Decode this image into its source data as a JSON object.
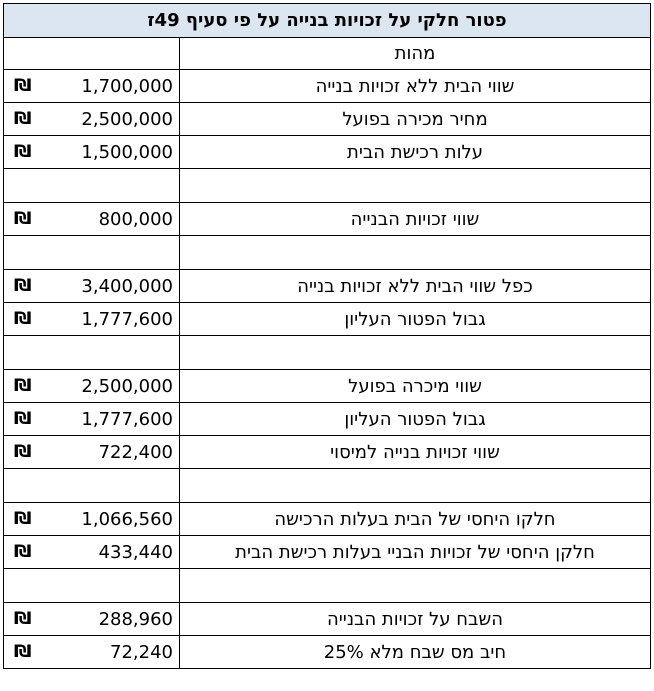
{
  "title": "פטור חלקי על זכויות בנייה על פי סעיף 49ז",
  "header": "מהות",
  "currency_symbol": "₪",
  "rows": [
    {
      "label": "שווי הבית ללא זכויות בנייה",
      "value": "1,700,000"
    },
    {
      "label": "מחיר מכירה בפועל",
      "value": "2,500,000"
    },
    {
      "label": "עלות רכישת הבית",
      "value": "1,500,000"
    },
    {
      "label": "",
      "value": ""
    },
    {
      "label": "שווי זכויות הבנייה",
      "value": "800,000"
    },
    {
      "label": "",
      "value": ""
    },
    {
      "label": "כפל שווי הבית ללא זכויות בנייה",
      "value": "3,400,000"
    },
    {
      "label": "גבול הפטור העליון",
      "value": "1,777,600"
    },
    {
      "label": "",
      "value": ""
    },
    {
      "label": "שווי מיכרה בפועל",
      "value": "2,500,000"
    },
    {
      "label": "גבול הפטור העליון",
      "value": "1,777,600"
    },
    {
      "label": "שווי זכויות בנייה למיסוי",
      "value": "722,400"
    },
    {
      "label": "",
      "value": ""
    },
    {
      "label": "חלקו היחסי של הבית בעלות הרכישה",
      "value": "1,066,560"
    },
    {
      "label": "חלקן היחסי של זכויות הבניי בעלות רכישת הבית",
      "value": "433,440"
    },
    {
      "label": "",
      "value": ""
    },
    {
      "label": "השבח על זכויות הבנייה",
      "value": "288,960"
    },
    {
      "label": "חיב מס שבח מלא 25%",
      "value": "72,240"
    }
  ]
}
